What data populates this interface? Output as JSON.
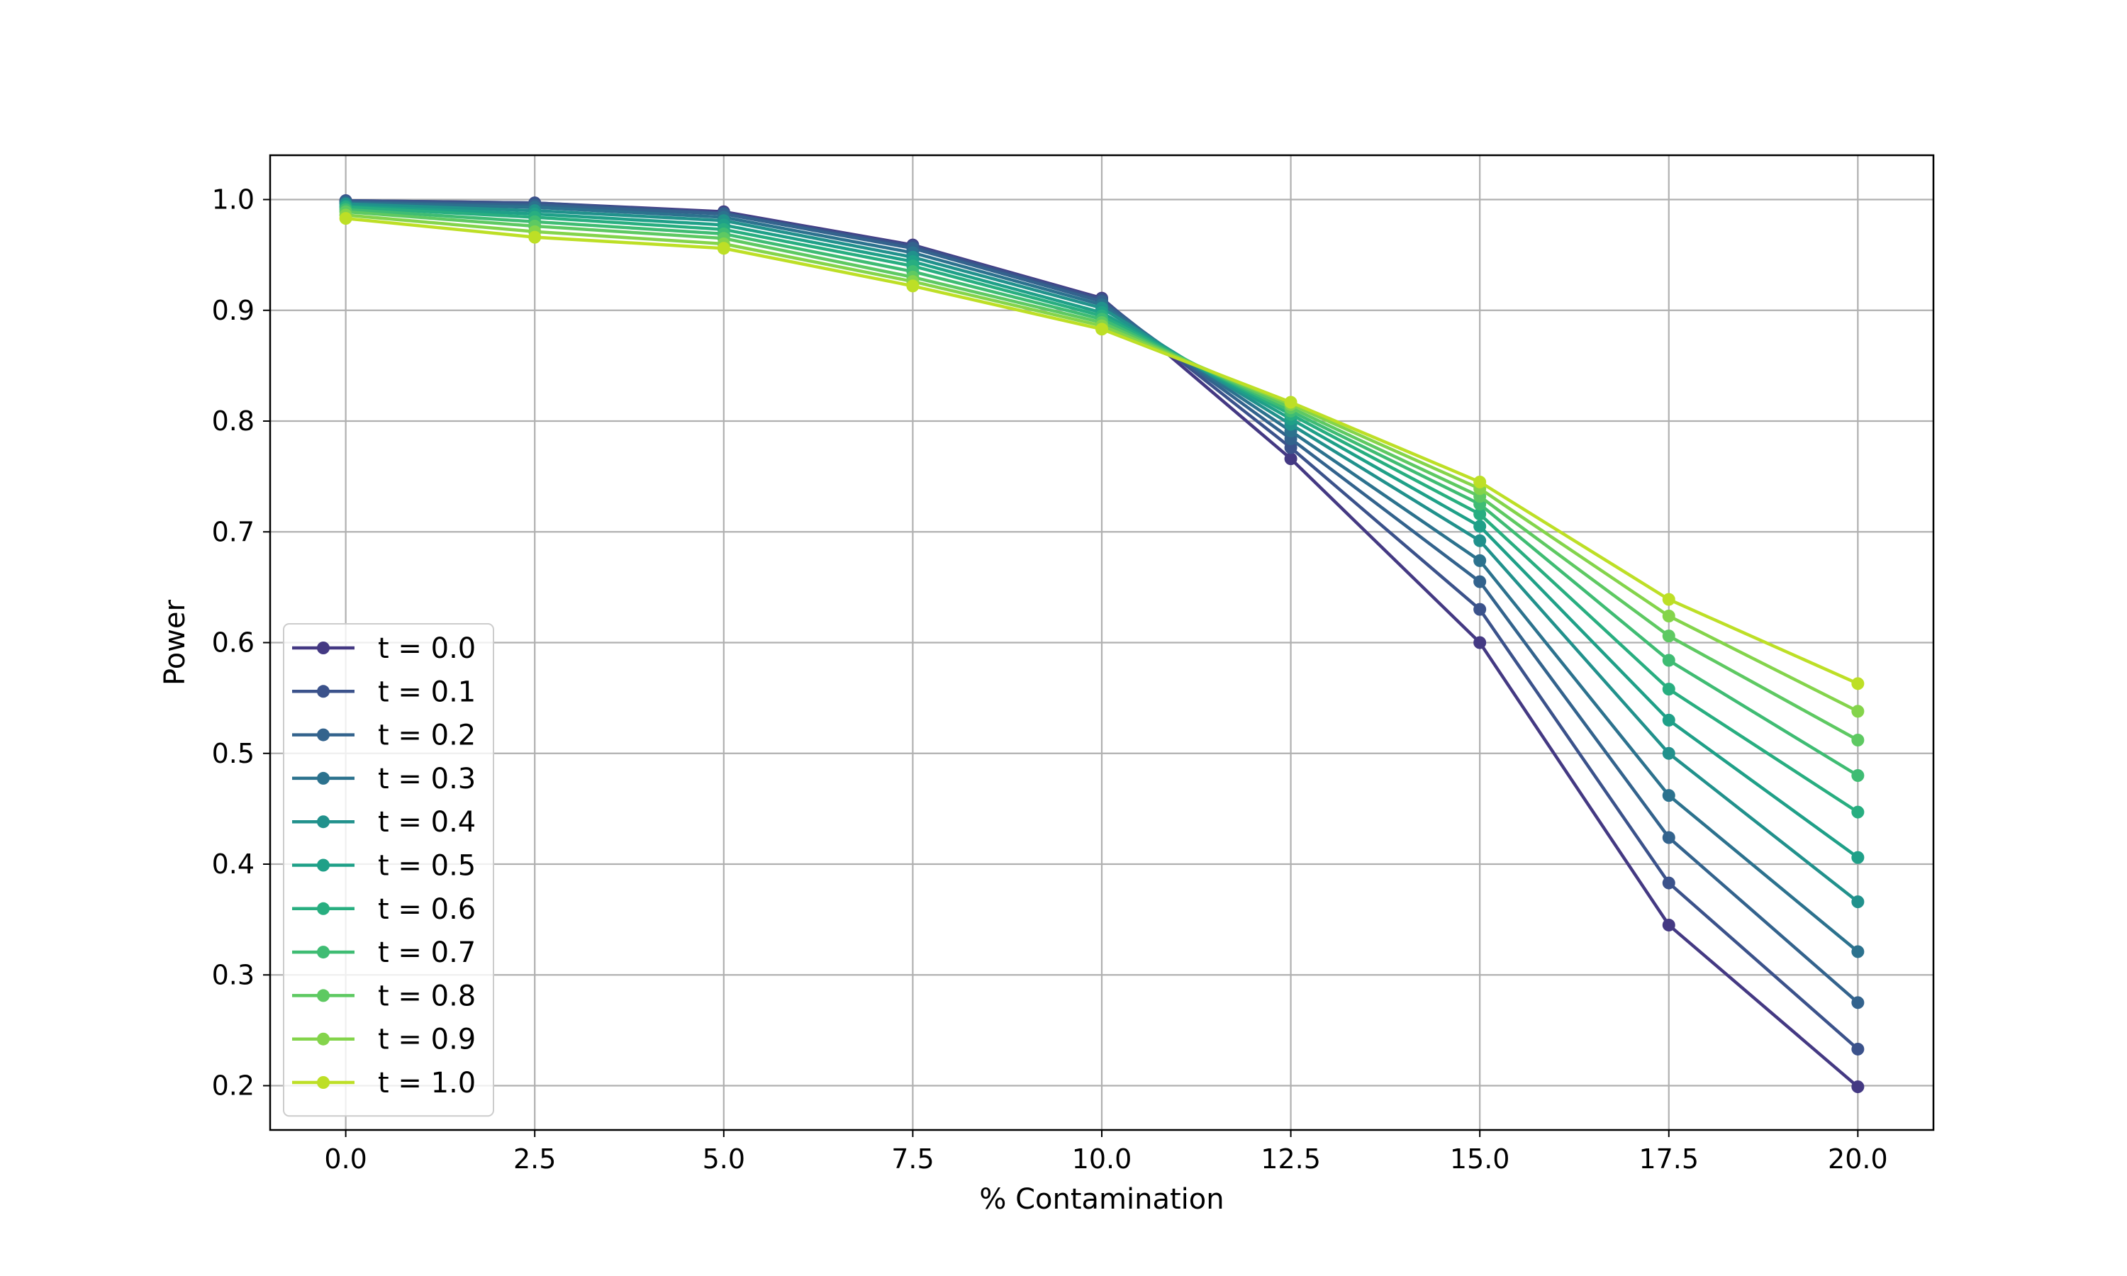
{
  "chart_data": {
    "type": "line",
    "title": "",
    "xlabel": "% Contamination",
    "ylabel": "Power",
    "xlim": [
      -1.0,
      21.0
    ],
    "ylim": [
      0.16,
      1.04
    ],
    "xticks": [
      0.0,
      2.5,
      5.0,
      7.5,
      10.0,
      12.5,
      15.0,
      17.5,
      20.0
    ],
    "xtick_labels": [
      "0.0",
      "2.5",
      "5.0",
      "7.5",
      "10.0",
      "12.5",
      "15.0",
      "17.5",
      "20.0"
    ],
    "yticks": [
      0.2,
      0.3,
      0.4,
      0.5,
      0.6,
      0.7,
      0.8,
      0.9,
      1.0
    ],
    "ytick_labels": [
      "0.2",
      "0.3",
      "0.4",
      "0.5",
      "0.6",
      "0.7",
      "0.8",
      "0.9",
      "1.0"
    ],
    "grid": true,
    "legend_position": "lower-left",
    "x": [
      0.0,
      2.5,
      5.0,
      7.5,
      10.0,
      12.5,
      15.0,
      17.5,
      20.0
    ],
    "series": [
      {
        "name": "t = 0.0",
        "color": "#443983",
        "values": [
          0.999,
          0.997,
          0.989,
          0.959,
          0.911,
          0.766,
          0.6,
          0.345,
          0.199
        ]
      },
      {
        "name": "t = 0.1",
        "color": "#3b528b",
        "values": [
          0.999,
          0.997,
          0.988,
          0.958,
          0.91,
          0.776,
          0.63,
          0.383,
          0.233
        ]
      },
      {
        "name": "t = 0.2",
        "color": "#33638d",
        "values": [
          0.998,
          0.995,
          0.987,
          0.956,
          0.908,
          0.784,
          0.655,
          0.424,
          0.275
        ]
      },
      {
        "name": "t = 0.3",
        "color": "#2c728e",
        "values": [
          0.997,
          0.993,
          0.984,
          0.952,
          0.905,
          0.791,
          0.674,
          0.462,
          0.321
        ]
      },
      {
        "name": "t = 0.4",
        "color": "#21918c",
        "values": [
          0.996,
          0.99,
          0.981,
          0.948,
          0.902,
          0.797,
          0.692,
          0.5,
          0.366
        ]
      },
      {
        "name": "t = 0.5",
        "color": "#1fa088",
        "values": [
          0.994,
          0.987,
          0.977,
          0.944,
          0.898,
          0.802,
          0.705,
          0.53,
          0.406
        ]
      },
      {
        "name": "t = 0.6",
        "color": "#28ae80",
        "values": [
          0.993,
          0.984,
          0.973,
          0.94,
          0.895,
          0.806,
          0.716,
          0.558,
          0.447
        ]
      },
      {
        "name": "t = 0.7",
        "color": "#3fbc73",
        "values": [
          0.991,
          0.98,
          0.969,
          0.935,
          0.892,
          0.809,
          0.725,
          0.584,
          0.48
        ]
      },
      {
        "name": "t = 0.8",
        "color": "#5ec962",
        "values": [
          0.989,
          0.976,
          0.965,
          0.93,
          0.889,
          0.812,
          0.732,
          0.606,
          0.512
        ]
      },
      {
        "name": "t = 0.9",
        "color": "#84d44b",
        "values": [
          0.986,
          0.971,
          0.96,
          0.926,
          0.886,
          0.815,
          0.739,
          0.624,
          0.538
        ]
      },
      {
        "name": "t = 1.0",
        "color": "#bddf26",
        "values": [
          0.983,
          0.966,
          0.956,
          0.922,
          0.883,
          0.817,
          0.745,
          0.639,
          0.563
        ]
      }
    ]
  }
}
